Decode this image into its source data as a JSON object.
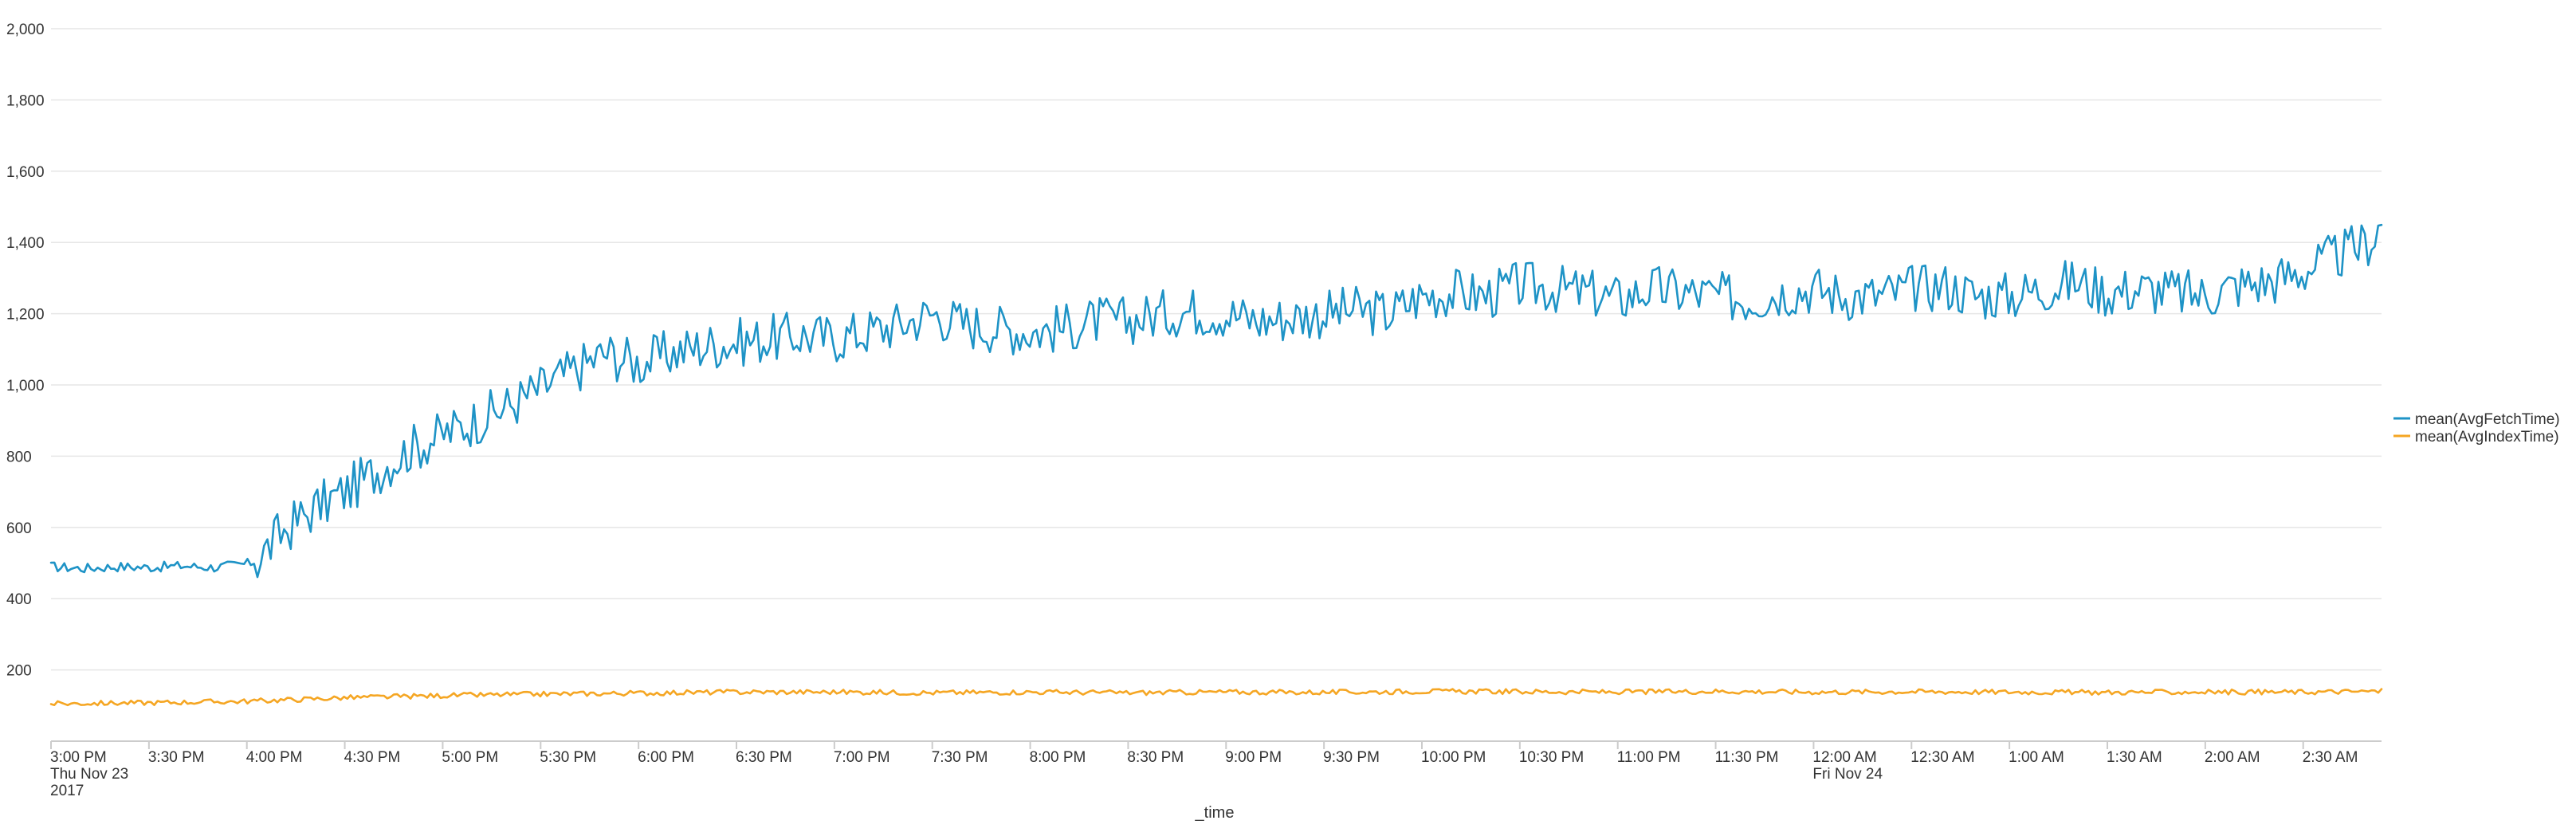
{
  "chart_data": {
    "type": "line",
    "xlabel": "_time",
    "ylabel": "",
    "ylim": [
      0,
      2000
    ],
    "yticks": [
      "2,000",
      "1,800",
      "1,600",
      "1,400",
      "1,200",
      "1,000",
      "800",
      "600",
      "400",
      "200"
    ],
    "ytick_values": [
      2000,
      1800,
      1600,
      1400,
      1200,
      1000,
      800,
      600,
      400,
      200
    ],
    "grid": "horizontal",
    "legend_position": "right",
    "x_start": "2017-11-23 15:00",
    "x_end": "2017-11-24 02:54",
    "xticks": [
      {
        "time": "2017-11-23 15:00",
        "lines": [
          "3:00 PM",
          "Thu Nov 23",
          "2017"
        ]
      },
      {
        "time": "2017-11-23 15:30",
        "lines": [
          "3:30 PM"
        ]
      },
      {
        "time": "2017-11-23 16:00",
        "lines": [
          "4:00 PM"
        ]
      },
      {
        "time": "2017-11-23 16:30",
        "lines": [
          "4:30 PM"
        ]
      },
      {
        "time": "2017-11-23 17:00",
        "lines": [
          "5:00 PM"
        ]
      },
      {
        "time": "2017-11-23 17:30",
        "lines": [
          "5:30 PM"
        ]
      },
      {
        "time": "2017-11-23 18:00",
        "lines": [
          "6:00 PM"
        ]
      },
      {
        "time": "2017-11-23 18:30",
        "lines": [
          "6:30 PM"
        ]
      },
      {
        "time": "2017-11-23 19:00",
        "lines": [
          "7:00 PM"
        ]
      },
      {
        "time": "2017-11-23 19:30",
        "lines": [
          "7:30 PM"
        ]
      },
      {
        "time": "2017-11-23 20:00",
        "lines": [
          "8:00 PM"
        ]
      },
      {
        "time": "2017-11-23 20:30",
        "lines": [
          "8:30 PM"
        ]
      },
      {
        "time": "2017-11-23 21:00",
        "lines": [
          "9:00 PM"
        ]
      },
      {
        "time": "2017-11-23 21:30",
        "lines": [
          "9:30 PM"
        ]
      },
      {
        "time": "2017-11-23 22:00",
        "lines": [
          "10:00 PM"
        ]
      },
      {
        "time": "2017-11-23 22:30",
        "lines": [
          "10:30 PM"
        ]
      },
      {
        "time": "2017-11-23 23:00",
        "lines": [
          "11:00 PM"
        ]
      },
      {
        "time": "2017-11-23 23:30",
        "lines": [
          "11:30 PM"
        ]
      },
      {
        "time": "2017-11-24 00:00",
        "lines": [
          "12:00 AM",
          "Fri Nov 24"
        ]
      },
      {
        "time": "2017-11-24 00:30",
        "lines": [
          "12:30 AM"
        ]
      },
      {
        "time": "2017-11-24 01:00",
        "lines": [
          "1:00 AM"
        ]
      },
      {
        "time": "2017-11-24 01:30",
        "lines": [
          "1:30 AM"
        ]
      },
      {
        "time": "2017-11-24 02:00",
        "lines": [
          "2:00 AM"
        ]
      },
      {
        "time": "2017-11-24 02:30",
        "lines": [
          "2:30 AM"
        ]
      }
    ],
    "series": [
      {
        "name": "mean(AvgFetchTime)",
        "color": "#1e93c6",
        "x": [
          "2017-11-23 15:00",
          "2017-11-23 15:10",
          "2017-11-23 15:20",
          "2017-11-23 15:30",
          "2017-11-23 15:40",
          "2017-11-23 15:50",
          "2017-11-23 16:00",
          "2017-11-23 16:03",
          "2017-11-23 16:10",
          "2017-11-23 16:20",
          "2017-11-23 16:30",
          "2017-11-23 16:40",
          "2017-11-23 16:50",
          "2017-11-23 17:00",
          "2017-11-23 17:10",
          "2017-11-23 17:20",
          "2017-11-23 17:30",
          "2017-11-23 17:40",
          "2017-11-23 17:50",
          "2017-11-23 18:00",
          "2017-11-23 18:10",
          "2017-11-23 18:20",
          "2017-11-23 18:30",
          "2017-11-23 18:40",
          "2017-11-23 18:50",
          "2017-11-23 19:00",
          "2017-11-23 19:10",
          "2017-11-23 19:20",
          "2017-11-23 19:30",
          "2017-11-23 19:40",
          "2017-11-23 19:50",
          "2017-11-23 20:00",
          "2017-11-23 20:10",
          "2017-11-23 20:20",
          "2017-11-23 20:30",
          "2017-11-23 20:40",
          "2017-11-23 20:50",
          "2017-11-23 21:00",
          "2017-11-23 21:10",
          "2017-11-23 21:20",
          "2017-11-23 21:30",
          "2017-11-23 21:40",
          "2017-11-23 21:50",
          "2017-11-23 22:00",
          "2017-11-23 22:10",
          "2017-11-23 22:20",
          "2017-11-23 22:30",
          "2017-11-23 22:40",
          "2017-11-23 22:50",
          "2017-11-23 23:00",
          "2017-11-23 23:10",
          "2017-11-23 23:20",
          "2017-11-23 23:30",
          "2017-11-23 23:40",
          "2017-11-23 23:50",
          "2017-11-24 00:00",
          "2017-11-24 00:10",
          "2017-11-24 00:20",
          "2017-11-24 00:30",
          "2017-11-24 00:40",
          "2017-11-24 00:50",
          "2017-11-24 01:00",
          "2017-11-24 01:10",
          "2017-11-24 01:20",
          "2017-11-24 01:30",
          "2017-11-24 01:40",
          "2017-11-24 01:50",
          "2017-11-24 02:00",
          "2017-11-24 02:10",
          "2017-11-24 02:20",
          "2017-11-24 02:30",
          "2017-11-24 02:40",
          "2017-11-24 02:50",
          "2017-11-24 02:54"
        ],
        "y": [
          490,
          485,
          490,
          488,
          492,
          488,
          498,
          505,
          580,
          650,
          700,
          760,
          820,
          860,
          900,
          940,
          990,
          1040,
          1090,
          1060,
          1090,
          1110,
          1120,
          1130,
          1140,
          1130,
          1150,
          1170,
          1200,
          1170,
          1160,
          1150,
          1160,
          1180,
          1180,
          1200,
          1210,
          1200,
          1180,
          1190,
          1200,
          1210,
          1200,
          1250,
          1260,
          1250,
          1280,
          1270,
          1260,
          1240,
          1270,
          1260,
          1250,
          1240,
          1260,
          1270,
          1250,
          1250,
          1270,
          1280,
          1250,
          1250,
          1270,
          1290,
          1260,
          1270,
          1260,
          1250,
          1280,
          1290,
          1320,
          1360,
          1400,
          1450
        ]
      },
      {
        "name": "mean(AvgIndexTime)",
        "color": "#f5a623",
        "x": [
          "2017-11-23 15:00",
          "2017-11-23 15:30",
          "2017-11-23 16:00",
          "2017-11-23 16:30",
          "2017-11-23 17:00",
          "2017-11-23 17:30",
          "2017-11-23 18:00",
          "2017-11-23 18:30",
          "2017-11-23 19:00",
          "2017-11-23 19:30",
          "2017-11-23 20:00",
          "2017-11-23 20:30",
          "2017-11-23 21:00",
          "2017-11-23 21:30",
          "2017-11-23 22:00",
          "2017-11-23 22:30",
          "2017-11-23 23:00",
          "2017-11-23 23:30",
          "2017-11-24 00:00",
          "2017-11-24 00:30",
          "2017-11-24 01:00",
          "2017-11-24 01:30",
          "2017-11-24 02:00",
          "2017-11-24 02:30",
          "2017-11-24 02:54"
        ],
        "y": [
          105,
          108,
          112,
          122,
          128,
          132,
          135,
          138,
          138,
          136,
          138,
          136,
          138,
          137,
          140,
          139,
          138,
          140,
          138,
          139,
          138,
          137,
          138,
          138,
          140
        ]
      }
    ]
  }
}
